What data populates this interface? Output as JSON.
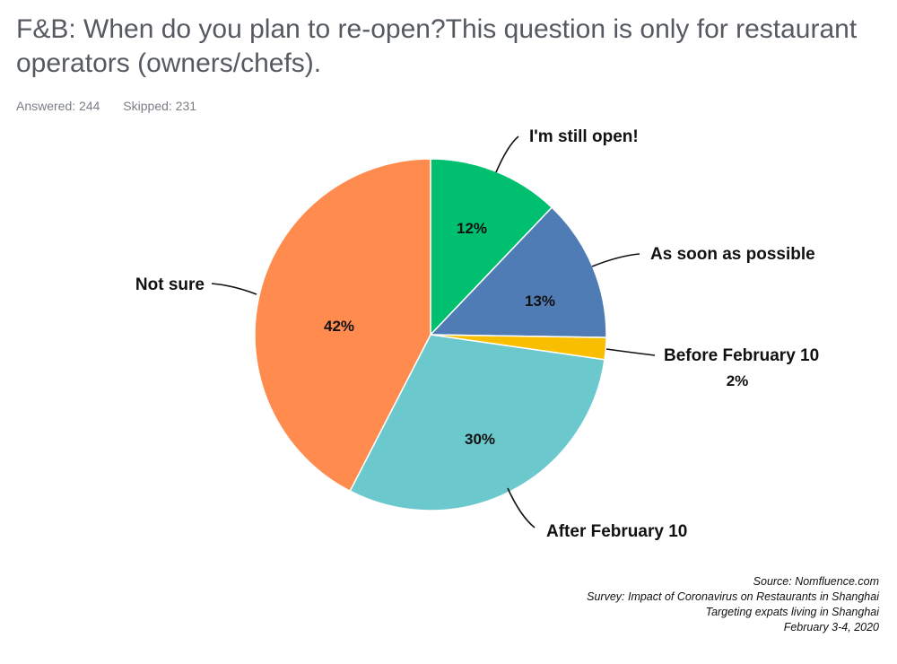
{
  "header": {
    "title": "F&B: When do you plan to re-open?This question is only for restaurant operators (owners/chefs).",
    "answered": "Answered: 244",
    "skipped": "Skipped: 231"
  },
  "chart_data": {
    "type": "pie",
    "slices": [
      {
        "label": "I'm still open!",
        "value": 12,
        "value_label": "12%",
        "color": "#00bf6f"
      },
      {
        "label": "As soon as possible",
        "value": 13,
        "value_label": "13%",
        "color": "#507cb6"
      },
      {
        "label": "Before February 10",
        "value": 2,
        "value_label": "2%",
        "color": "#f9be00"
      },
      {
        "label": "After February 10",
        "value": 30,
        "value_label": "30%",
        "color": "#6bc8cd"
      },
      {
        "label": "Not sure",
        "value": 42,
        "value_label": "42%",
        "color": "#ff8b4f"
      }
    ]
  },
  "footer": {
    "source": "Source: Nomfluence.com",
    "survey": "Survey: Impact of Coronavirus on Restaurants in Shanghai",
    "targeting": "Targeting expats living in Shanghai",
    "date": "February 3-4, 2020"
  }
}
